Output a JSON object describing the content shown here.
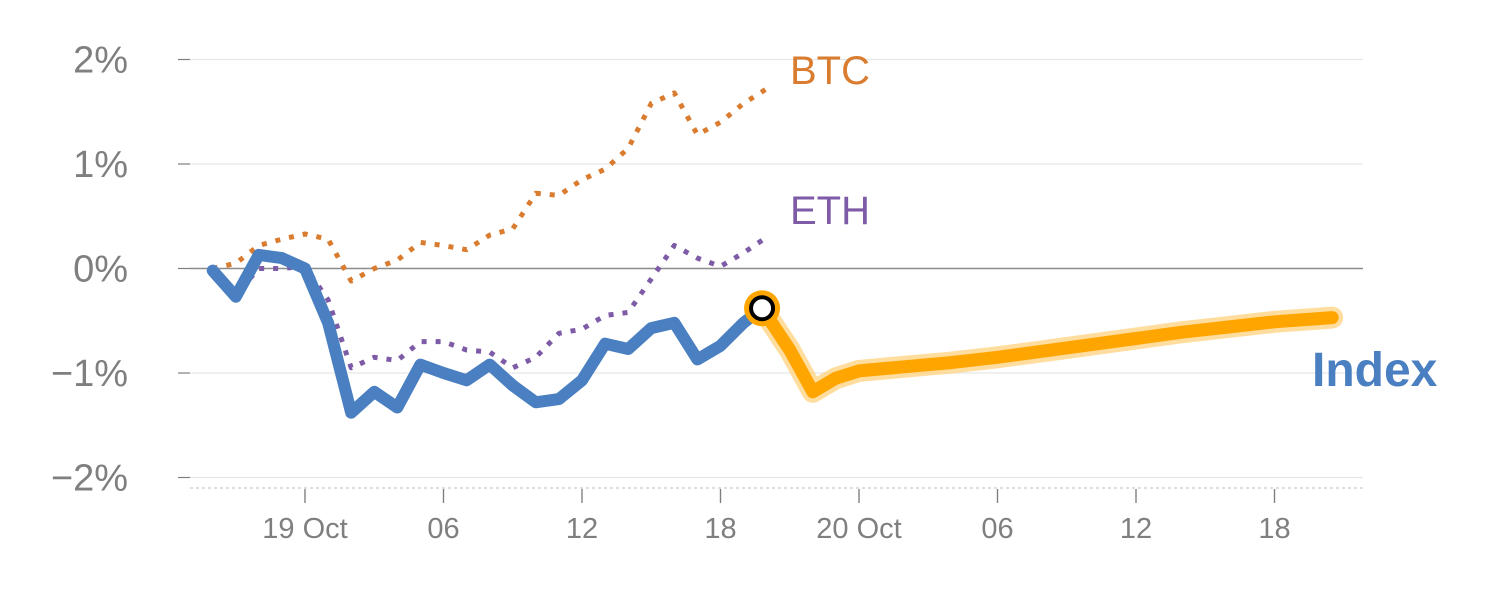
{
  "chart_data": {
    "type": "line",
    "y_unit": "%",
    "ylim": [
      -2.1,
      2.1
    ],
    "xlim": [
      -4,
      47
    ],
    "y_ticks": [
      {
        "value": 2,
        "label": "2%"
      },
      {
        "value": 1,
        "label": "1%"
      },
      {
        "value": 0,
        "label": "0%"
      },
      {
        "value": -1,
        "label": "−1%"
      },
      {
        "value": -2,
        "label": "−2%"
      }
    ],
    "x_ticks": [
      {
        "hour": 0,
        "label": "19 Oct"
      },
      {
        "hour": 6,
        "label": "06"
      },
      {
        "hour": 12,
        "label": "12"
      },
      {
        "hour": 18,
        "label": "18"
      },
      {
        "hour": 24,
        "label": "20 Oct"
      },
      {
        "hour": 30,
        "label": "06"
      },
      {
        "hour": 36,
        "label": "12"
      },
      {
        "hour": 42,
        "label": "18"
      }
    ],
    "grid": true,
    "zero_line": true,
    "series": [
      {
        "name": "BTC",
        "color": "#d97c2f",
        "style": "dotted",
        "points": [
          [
            -4,
            0.0
          ],
          [
            -3,
            0.05
          ],
          [
            -2,
            0.22
          ],
          [
            -1,
            0.28
          ],
          [
            0,
            0.33
          ],
          [
            1,
            0.28
          ],
          [
            2,
            -0.12
          ],
          [
            3,
            0.0
          ],
          [
            4,
            0.08
          ],
          [
            5,
            0.25
          ],
          [
            6,
            0.22
          ],
          [
            7,
            0.18
          ],
          [
            8,
            0.32
          ],
          [
            9,
            0.38
          ],
          [
            10,
            0.72
          ],
          [
            11,
            0.7
          ],
          [
            12,
            0.85
          ],
          [
            13,
            0.95
          ],
          [
            14,
            1.15
          ],
          [
            15,
            1.58
          ],
          [
            16,
            1.68
          ],
          [
            17,
            1.28
          ],
          [
            18,
            1.4
          ],
          [
            19,
            1.58
          ],
          [
            20,
            1.72
          ]
        ]
      },
      {
        "name": "ETH",
        "color": "#7d5ba6",
        "style": "dotted",
        "points": [
          [
            -4,
            0.0
          ],
          [
            -3,
            -0.25
          ],
          [
            -2,
            0.0
          ],
          [
            -1,
            0.0
          ],
          [
            0,
            0.02
          ],
          [
            1,
            -0.3
          ],
          [
            2,
            -0.95
          ],
          [
            3,
            -0.85
          ],
          [
            4,
            -0.88
          ],
          [
            5,
            -0.7
          ],
          [
            6,
            -0.7
          ],
          [
            7,
            -0.78
          ],
          [
            8,
            -0.8
          ],
          [
            9,
            -0.95
          ],
          [
            10,
            -0.85
          ],
          [
            11,
            -0.62
          ],
          [
            12,
            -0.58
          ],
          [
            13,
            -0.45
          ],
          [
            14,
            -0.42
          ],
          [
            15,
            -0.1
          ],
          [
            16,
            0.22
          ],
          [
            17,
            0.1
          ],
          [
            18,
            0.02
          ],
          [
            19,
            0.15
          ],
          [
            20,
            0.3
          ]
        ]
      },
      {
        "name": "Index",
        "color": "#4a7fc1",
        "style": "solid",
        "points": [
          [
            -4,
            -0.02
          ],
          [
            -3,
            -0.27
          ],
          [
            -2,
            0.13
          ],
          [
            -1,
            0.1
          ],
          [
            0,
            0.0
          ],
          [
            1,
            -0.52
          ],
          [
            2,
            -1.38
          ],
          [
            3,
            -1.18
          ],
          [
            4,
            -1.33
          ],
          [
            5,
            -0.92
          ],
          [
            6,
            -1.0
          ],
          [
            7,
            -1.07
          ],
          [
            8,
            -0.92
          ],
          [
            9,
            -1.12
          ],
          [
            10,
            -1.28
          ],
          [
            11,
            -1.25
          ],
          [
            12,
            -1.07
          ],
          [
            13,
            -0.72
          ],
          [
            14,
            -0.77
          ],
          [
            15,
            -0.57
          ],
          [
            16,
            -0.52
          ],
          [
            17,
            -0.87
          ],
          [
            18,
            -0.74
          ],
          [
            19,
            -0.52
          ],
          [
            19.8,
            -0.38
          ]
        ]
      },
      {
        "name": "Index forecast",
        "color": "#ffa500",
        "style": "solid",
        "points": [
          [
            19.8,
            -0.38
          ],
          [
            21,
            -0.78
          ],
          [
            22,
            -1.18
          ],
          [
            23,
            -1.05
          ],
          [
            24,
            -0.98
          ],
          [
            26,
            -0.94
          ],
          [
            28,
            -0.9
          ],
          [
            30,
            -0.85
          ],
          [
            32,
            -0.79
          ],
          [
            34,
            -0.73
          ],
          [
            36,
            -0.67
          ],
          [
            38,
            -0.61
          ],
          [
            40,
            -0.56
          ],
          [
            42,
            -0.51
          ],
          [
            44.5,
            -0.47
          ]
        ]
      }
    ],
    "marker": {
      "x": 19.8,
      "y": -0.38
    }
  }
}
